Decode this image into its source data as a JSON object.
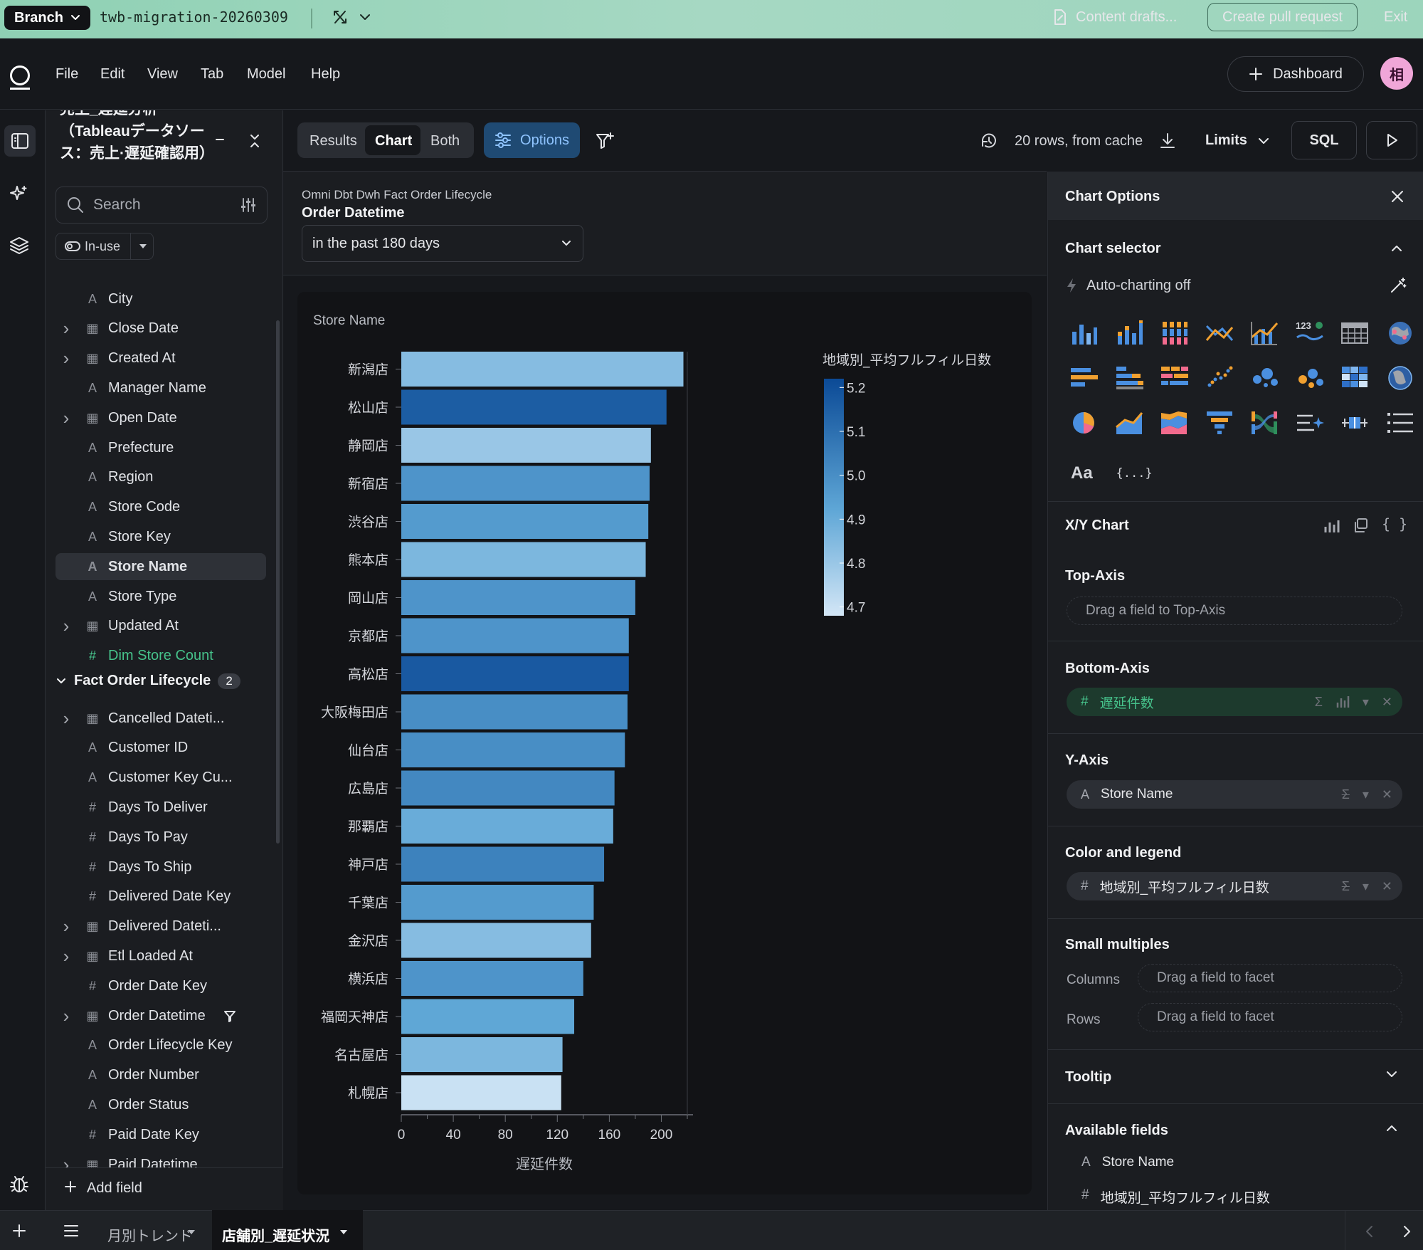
{
  "branch": {
    "label": "Branch",
    "name": "twb-migration-20260309",
    "drafts": "Content drafts...",
    "create_pr": "Create pull request",
    "exit": "Exit"
  },
  "menu": [
    "File",
    "Edit",
    "View",
    "Tab",
    "Model",
    "Help"
  ],
  "header": {
    "dashboard": "Dashboard",
    "avatar": "相"
  },
  "topic": {
    "title": "売上_遅延分析（Tableauデータソース：売上·遅延確認用）"
  },
  "fields": {
    "search_placeholder": "Search",
    "filter": "In-use",
    "list": [
      {
        "label": "City",
        "type": "text",
        "expand": false
      },
      {
        "label": "Close Date",
        "type": "date",
        "expand": true
      },
      {
        "label": "Created At",
        "type": "date",
        "expand": true
      },
      {
        "label": "Manager Name",
        "type": "text",
        "expand": false
      },
      {
        "label": "Open Date",
        "type": "date",
        "expand": true
      },
      {
        "label": "Prefecture",
        "type": "text",
        "expand": false
      },
      {
        "label": "Region",
        "type": "text",
        "expand": false
      },
      {
        "label": "Store Code",
        "type": "text",
        "expand": false
      },
      {
        "label": "Store Key",
        "type": "text",
        "expand": false
      },
      {
        "label": "Store Name",
        "type": "text",
        "expand": false,
        "selected": true
      },
      {
        "label": "Store Type",
        "type": "text",
        "expand": false
      },
      {
        "label": "Updated At",
        "type": "date",
        "expand": true
      },
      {
        "label": "Dim Store Count",
        "type": "number",
        "expand": false,
        "measure": true
      }
    ],
    "group": {
      "label": "Fact Order Lifecycle",
      "count": "2"
    },
    "group_list": [
      {
        "label": "Cancelled Dateti...",
        "type": "date",
        "expand": true
      },
      {
        "label": "Customer ID",
        "type": "text",
        "expand": false
      },
      {
        "label": "Customer Key Cu...",
        "type": "text",
        "expand": false
      },
      {
        "label": "Days To Deliver",
        "type": "number",
        "expand": false
      },
      {
        "label": "Days To Pay",
        "type": "number",
        "expand": false
      },
      {
        "label": "Days To Ship",
        "type": "number",
        "expand": false
      },
      {
        "label": "Delivered Date Key",
        "type": "number",
        "expand": false
      },
      {
        "label": "Delivered Dateti...",
        "type": "date",
        "expand": true
      },
      {
        "label": "Etl Loaded At",
        "type": "date",
        "expand": true
      },
      {
        "label": "Order Date Key",
        "type": "number",
        "expand": false
      },
      {
        "label": "Order Datetime",
        "type": "date",
        "expand": true,
        "filtered": true
      },
      {
        "label": "Order Lifecycle Key",
        "type": "text",
        "expand": false
      },
      {
        "label": "Order Number",
        "type": "text",
        "expand": false
      },
      {
        "label": "Order Status",
        "type": "text",
        "expand": false
      },
      {
        "label": "Paid Date Key",
        "type": "number",
        "expand": false
      },
      {
        "label": "Paid Datetime",
        "type": "date",
        "expand": true
      }
    ],
    "add_field": "Add field"
  },
  "toolbar": {
    "results": "Results",
    "chart": "Chart",
    "both": "Both",
    "options": "Options",
    "rows_info": "20 rows, from cache",
    "limits": "Limits",
    "sql": "SQL"
  },
  "filter": {
    "topic": "Omni Dbt Dwh Fact Order Lifecycle",
    "field": "Order Datetime",
    "value": "in the past 180 days"
  },
  "chart_data": {
    "type": "bar",
    "orientation": "horizontal",
    "ylabel": "Store Name",
    "xlabel": "遅延件数",
    "xlim": [
      0,
      220
    ],
    "xticks": [
      0,
      40,
      80,
      120,
      160,
      200
    ],
    "categories": [
      "新潟店",
      "松山店",
      "静岡店",
      "新宿店",
      "渋谷店",
      "熊本店",
      "岡山店",
      "京都店",
      "高松店",
      "大阪梅田店",
      "仙台店",
      "広島店",
      "那覇店",
      "神戸店",
      "千葉店",
      "金沢店",
      "横浜店",
      "福岡天神店",
      "名古屋店",
      "札幌店"
    ],
    "values": [
      217,
      204,
      192,
      191,
      190,
      188,
      180,
      175,
      175,
      174,
      172,
      164,
      163,
      156,
      148,
      146,
      140,
      133,
      124,
      123
    ],
    "color_values": [
      4.84,
      5.16,
      4.8,
      4.98,
      4.96,
      4.86,
      4.98,
      4.98,
      5.17,
      5.0,
      5.0,
      5.02,
      4.9,
      5.04,
      4.96,
      4.84,
      4.98,
      4.92,
      4.86,
      4.7
    ],
    "legend": {
      "title": "地域別_平均フルフィル日数",
      "ticks": [
        5.2,
        5.1,
        5.0,
        4.9,
        4.8,
        4.7
      ],
      "min": 4.68,
      "max": 5.22,
      "placement": "top-right"
    },
    "colors": {
      "low": "#d3e6f6",
      "high": "#0b4a96"
    }
  },
  "options": {
    "title": "Chart Options",
    "chart_selector": "Chart selector",
    "auto_charting": "Auto-charting off",
    "chart_types": [
      "vertical-bar",
      "stacked-vertical-bar",
      "grid-bar",
      "line",
      "bar-line-combo",
      "kpi-number",
      "table",
      "map",
      "horizontal-bar",
      "stacked-horizontal-bar",
      "grid-horizontal-bar",
      "scatter",
      "bubble",
      "multi-bubble",
      "heatmap",
      "globe",
      "pie",
      "area",
      "stacked-area",
      "funnel",
      "sankey",
      "summary-sparkle",
      "box-plot",
      "list",
      "text-aa",
      "code-template"
    ],
    "text_chart": "Aa",
    "code_chart": "{...}",
    "xy_title": "X/Y Chart",
    "top_axis": {
      "title": "Top-Axis",
      "placeholder": "Drag a field to Top-Axis"
    },
    "bottom_axis": {
      "title": "Bottom-Axis",
      "field": "遅延件数"
    },
    "y_axis": {
      "title": "Y-Axis",
      "field": "Store Name"
    },
    "color": {
      "title": "Color and legend",
      "field": "地域別_平均フルフィル日数"
    },
    "small_multiples": {
      "title": "Small multiples",
      "columns": "Columns",
      "rows": "Rows",
      "placeholder": "Drag a field to facet"
    },
    "tooltip": "Tooltip",
    "available": {
      "title": "Available fields",
      "items": [
        "Store Name",
        "地域別_平均フルフィル日数"
      ]
    }
  },
  "tabs": {
    "items": [
      "月別トレンド",
      "店舗別_遅延状況"
    ],
    "active": 1
  }
}
